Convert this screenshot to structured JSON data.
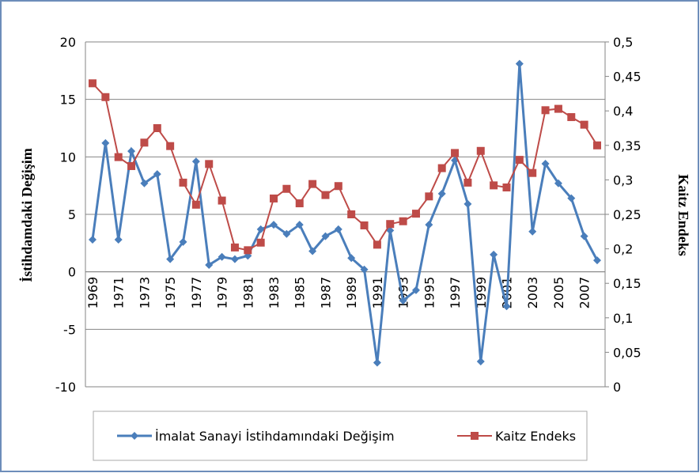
{
  "chart_data": {
    "type": "line",
    "y_label": "İstihdamdaki Değişim",
    "y2_label": "Kaitz Endeks",
    "categories": [
      "1969",
      null,
      "1971",
      null,
      "1973",
      null,
      "1975",
      null,
      "1977",
      null,
      "1979",
      null,
      "1981",
      null,
      "1983",
      null,
      "1985",
      null,
      "1987",
      null,
      "1989",
      null,
      "1991",
      null,
      "1993",
      null,
      "1995",
      null,
      "1997",
      null,
      "1999",
      null,
      "2001",
      null,
      "2003",
      null,
      "2005",
      null,
      "2007",
      null
    ],
    "ylim": [
      -10,
      20
    ],
    "yticks": [
      -10,
      -5,
      0,
      5,
      10,
      15,
      20
    ],
    "y2lim": [
      0,
      0.5
    ],
    "y2ticks": [
      0,
      {
        "value": 0.05,
        "label": "0,05"
      },
      {
        "value": 0.1,
        "label": "0,1"
      },
      {
        "value": 0.15,
        "label": "0,15"
      },
      {
        "value": 0.2,
        "label": "0,2"
      },
      {
        "value": 0.25,
        "label": "0,25"
      },
      {
        "value": 0.3,
        "label": "0,3"
      },
      {
        "value": 0.35,
        "label": "0,35"
      },
      {
        "value": 0.4,
        "label": "0,4"
      },
      {
        "value": 0.45,
        "label": "0,45"
      },
      {
        "value": 0.5,
        "label": "0,5"
      }
    ],
    "grid": true,
    "legend": "bottom",
    "series": [
      {
        "name": "İmalat Sanayi İstihdamındaki Değişim",
        "color": "#4a7ebb",
        "marker": "diamond",
        "values": [
          2.8,
          11.2,
          2.8,
          10.5,
          7.7,
          8.5,
          1.1,
          2.6,
          9.6,
          0.6,
          1.3,
          1.1,
          1.4,
          3.7,
          4.1,
          3.3,
          4.1,
          1.8,
          3.1,
          3.7,
          1.2,
          0.2,
          -7.9,
          3.6,
          -2.5,
          -1.6,
          4.1,
          6.8,
          9.7,
          5.9,
          -7.8,
          1.5,
          -3.0,
          18.1,
          3.5,
          9.4,
          7.7,
          6.4,
          3.1,
          1.0
        ]
      },
      {
        "name": "Kaitz Endeks",
        "color": "#be4b48",
        "marker": "square",
        "axis": "y2",
        "values": [
          0.44,
          0.42,
          0.333,
          0.32,
          0.354,
          0.375,
          0.349,
          0.296,
          0.264,
          0.323,
          0.27,
          0.202,
          0.198,
          0.209,
          0.273,
          0.287,
          0.266,
          0.294,
          0.278,
          0.291,
          0.25,
          0.234,
          0.206,
          0.236,
          0.24,
          0.251,
          0.276,
          0.317,
          0.339,
          0.296,
          0.342,
          0.292,
          0.289,
          0.329,
          0.31,
          0.401,
          0.403,
          0.391,
          0.38,
          0.35
        ]
      }
    ]
  }
}
